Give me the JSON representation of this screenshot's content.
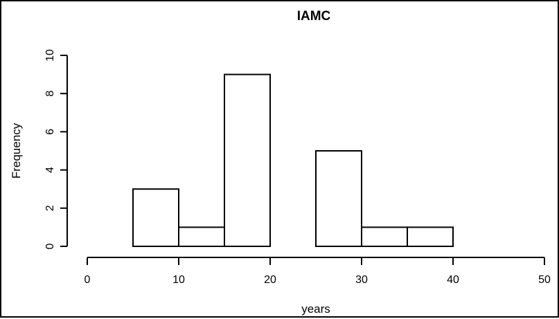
{
  "chart_data": {
    "type": "bar",
    "title": "IAMC",
    "xlabel": "years",
    "ylabel": "Frequency",
    "xlim": [
      0,
      50
    ],
    "ylim": [
      0,
      10
    ],
    "x_ticks": [
      0,
      10,
      20,
      30,
      40,
      50
    ],
    "y_ticks": [
      0,
      2,
      4,
      6,
      8,
      10
    ],
    "bins": [
      {
        "start": 5,
        "end": 10,
        "value": 3
      },
      {
        "start": 10,
        "end": 15,
        "value": 1
      },
      {
        "start": 15,
        "end": 20,
        "value": 9
      },
      {
        "start": 20,
        "end": 25,
        "value": 0
      },
      {
        "start": 25,
        "end": 30,
        "value": 5
      },
      {
        "start": 30,
        "end": 35,
        "value": 1
      },
      {
        "start": 35,
        "end": 40,
        "value": 1
      }
    ],
    "grid": false,
    "legend": "none",
    "bar_fill": "#ffffff",
    "bar_stroke": "#000000"
  }
}
